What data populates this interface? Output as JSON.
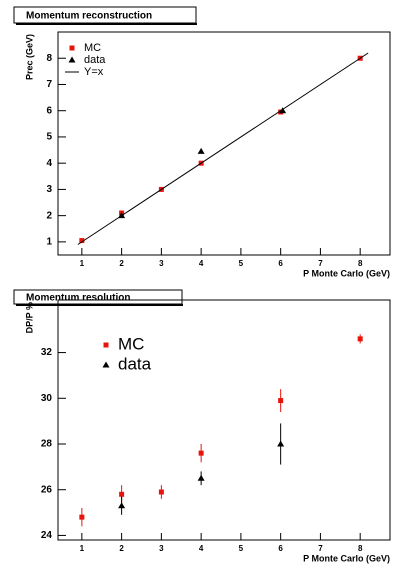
{
  "chart_data": [
    {
      "type": "scatter",
      "title": "Momentum reconstruction",
      "x_label": "P Monte Carlo (GeV)",
      "y_label": "Prec (GeV)",
      "xlim": [
        0.4,
        8.75
      ],
      "ylim": [
        0.5,
        9
      ],
      "xticks": [
        1,
        2,
        3,
        4,
        5,
        6,
        7,
        8
      ],
      "yticks": [
        1,
        2,
        3,
        4,
        5,
        6,
        7,
        8
      ],
      "legend": "upper left",
      "series": [
        {
          "name": "MC",
          "color": "#e8140c",
          "marker": "square",
          "x": [
            1,
            2,
            3,
            4,
            6,
            8
          ],
          "values": [
            1.05,
            2.1,
            3.0,
            4.0,
            5.95,
            8.0
          ]
        },
        {
          "name": "data",
          "color": "#000000",
          "marker": "triangle",
          "x": [
            2,
            4,
            6.05
          ],
          "values": [
            2.0,
            4.45,
            6.0
          ]
        },
        {
          "name": "Y=x",
          "color": "#000000",
          "marker": "line",
          "x": [
            0.9,
            8.2
          ],
          "values": [
            0.9,
            8.2
          ]
        }
      ]
    },
    {
      "type": "errorbar",
      "title": "Momentum resolution",
      "x_label": "P Monte Carlo (GeV)",
      "y_label": "DP/P %",
      "xlim": [
        0.4,
        8.75
      ],
      "ylim": [
        23.8,
        34.3
      ],
      "xticks": [
        1,
        2,
        3,
        4,
        5,
        6,
        7,
        8
      ],
      "yticks": [
        24,
        26,
        28,
        30,
        32
      ],
      "legend": "upper left",
      "series": [
        {
          "name": "MC",
          "color": "#e8140c",
          "marker": "square",
          "x": [
            1,
            2,
            3,
            4,
            6,
            8
          ],
          "values": [
            24.8,
            25.8,
            25.9,
            27.6,
            29.9,
            32.6
          ],
          "errors": [
            0.4,
            0.4,
            0.3,
            0.4,
            0.5,
            0.2
          ]
        },
        {
          "name": "data",
          "color": "#000000",
          "marker": "triangle",
          "x": [
            2,
            4,
            6
          ],
          "values": [
            25.3,
            26.5,
            28.0
          ],
          "errors": [
            0.4,
            0.3,
            0.9
          ]
        }
      ]
    }
  ]
}
